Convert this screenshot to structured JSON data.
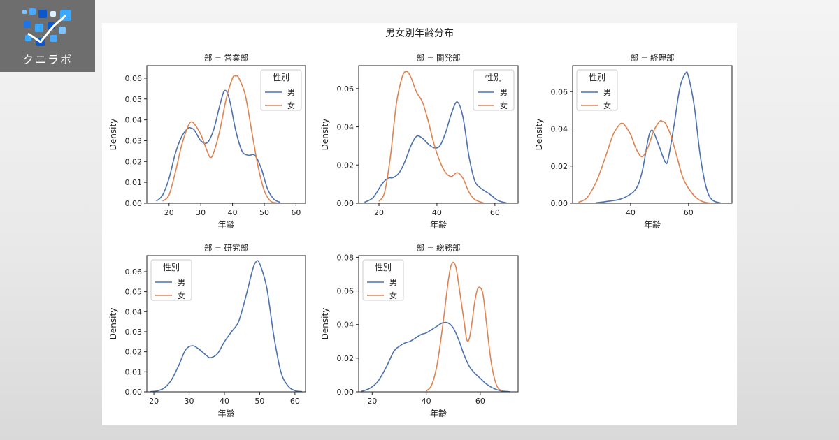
{
  "logo": {
    "text": "クニラボ"
  },
  "figure": {
    "title": "男女別年齢分布"
  },
  "colors": {
    "male": "#4c72b0",
    "female": "#dd8452"
  },
  "chart_data": [
    {
      "type": "line",
      "title": "部 = 営業部",
      "xlabel": "年齢",
      "ylabel": "Density",
      "xlim": [
        13,
        63
      ],
      "ylim": [
        0,
        0.066
      ],
      "xticks": [
        20,
        30,
        40,
        50,
        60
      ],
      "yticks": [
        0,
        0.01,
        0.02,
        0.03,
        0.04,
        0.05,
        0.06
      ],
      "ytick_labels": [
        "0.00",
        "0.01",
        "0.02",
        "0.03",
        "0.04",
        "0.05",
        "0.06"
      ],
      "legend": {
        "title": "性別",
        "entries": [
          "男",
          "女"
        ],
        "placement": "top-right"
      },
      "series": [
        {
          "name": "男",
          "x": [
            16,
            18,
            20,
            22,
            24,
            26,
            27,
            28,
            30,
            32,
            34,
            36,
            37.5,
            39,
            41,
            43,
            45,
            47,
            49,
            51,
            53,
            55
          ],
          "y": [
            0.001,
            0.004,
            0.012,
            0.024,
            0.032,
            0.036,
            0.036,
            0.035,
            0.03,
            0.029,
            0.035,
            0.047,
            0.054,
            0.05,
            0.035,
            0.025,
            0.023,
            0.023,
            0.017,
            0.007,
            0.002,
            0.0005
          ]
        },
        {
          "name": "女",
          "x": [
            18,
            20,
            22,
            24,
            26,
            27,
            28,
            30,
            32,
            33,
            34,
            36,
            38,
            40,
            41,
            42,
            44,
            46,
            48,
            50,
            52,
            54
          ],
          "y": [
            0.001,
            0.004,
            0.015,
            0.028,
            0.037,
            0.039,
            0.038,
            0.033,
            0.025,
            0.022,
            0.024,
            0.035,
            0.05,
            0.06,
            0.061,
            0.06,
            0.052,
            0.035,
            0.018,
            0.006,
            0.001,
            0.0002
          ]
        }
      ]
    },
    {
      "type": "line",
      "title": "部 = 開発部",
      "xlabel": "年齢",
      "ylabel": "Density",
      "xlim": [
        13,
        68
      ],
      "ylim": [
        0,
        0.072
      ],
      "xticks": [
        20,
        40,
        60
      ],
      "yticks": [
        0,
        0.02,
        0.04,
        0.06
      ],
      "ytick_labels": [
        "0.00",
        "0.02",
        "0.04",
        "0.06"
      ],
      "legend": {
        "title": "性別",
        "entries": [
          "男",
          "女"
        ],
        "placement": "top-right"
      },
      "series": [
        {
          "name": "男",
          "x": [
            15,
            18,
            21,
            23,
            25,
            27,
            29,
            31,
            33,
            35,
            37,
            39,
            41,
            43,
            45,
            47,
            49,
            51,
            53,
            55,
            58,
            61,
            64
          ],
          "y": [
            0.0005,
            0.003,
            0.01,
            0.013,
            0.0135,
            0.016,
            0.022,
            0.03,
            0.035,
            0.034,
            0.031,
            0.029,
            0.03,
            0.037,
            0.047,
            0.053,
            0.045,
            0.025,
            0.012,
            0.008,
            0.005,
            0.0015,
            0.0002
          ]
        },
        {
          "name": "女",
          "x": [
            20,
            22,
            24,
            26,
            28,
            29.5,
            31,
            33,
            35,
            37,
            39,
            41,
            43,
            45,
            47,
            49,
            51,
            53,
            56
          ],
          "y": [
            0.001,
            0.006,
            0.025,
            0.052,
            0.066,
            0.069,
            0.066,
            0.058,
            0.053,
            0.043,
            0.031,
            0.022,
            0.016,
            0.014,
            0.016,
            0.013,
            0.006,
            0.002,
            0.0002
          ]
        }
      ]
    },
    {
      "type": "line",
      "title": "部 = 経理部",
      "xlabel": "年齢",
      "ylabel": "Density",
      "xlim": [
        20,
        75
      ],
      "ylim": [
        0,
        0.074
      ],
      "xticks": [
        40,
        60
      ],
      "yticks": [
        0,
        0.02,
        0.04,
        0.06
      ],
      "ytick_labels": [
        "0.00",
        "0.02",
        "0.04",
        "0.06"
      ],
      "legend": {
        "title": "性別",
        "entries": [
          "男",
          "女"
        ],
        "placement": "top-left"
      },
      "series": [
        {
          "name": "男",
          "x": [
            28,
            32,
            36,
            39,
            42,
            44,
            46,
            47,
            48,
            50,
            52,
            53,
            55,
            57,
            59,
            60,
            62,
            64,
            66,
            68,
            71
          ],
          "y": [
            0.0002,
            0.001,
            0.002,
            0.004,
            0.008,
            0.017,
            0.034,
            0.039,
            0.038,
            0.03,
            0.022,
            0.024,
            0.042,
            0.062,
            0.07,
            0.068,
            0.052,
            0.026,
            0.009,
            0.002,
            0.0002
          ]
        },
        {
          "name": "女",
          "x": [
            22,
            25,
            28,
            30,
            32,
            34,
            36,
            37,
            38,
            40,
            42,
            44,
            46,
            48,
            50,
            51,
            52,
            54,
            56,
            58,
            60,
            62,
            64,
            66,
            68
          ],
          "y": [
            0.0005,
            0.003,
            0.011,
            0.019,
            0.028,
            0.037,
            0.042,
            0.043,
            0.042,
            0.037,
            0.029,
            0.025,
            0.03,
            0.039,
            0.044,
            0.044,
            0.043,
            0.036,
            0.025,
            0.014,
            0.008,
            0.004,
            0.0015,
            0.0004,
            0.0001
          ]
        }
      ]
    },
    {
      "type": "line",
      "title": "部 = 研究部",
      "xlabel": "年齢",
      "ylabel": "Density",
      "xlim": [
        18,
        63
      ],
      "ylim": [
        0,
        0.068
      ],
      "xticks": [
        20,
        30,
        40,
        50,
        60
      ],
      "yticks": [
        0,
        0.01,
        0.02,
        0.03,
        0.04,
        0.05,
        0.06
      ],
      "ytick_labels": [
        "0.00",
        "0.01",
        "0.02",
        "0.03",
        "0.04",
        "0.05",
        "0.06"
      ],
      "legend": {
        "title": "性別",
        "entries": [
          "男",
          "女"
        ],
        "placement": "top-left"
      },
      "series": [
        {
          "name": "男",
          "x": [
            19,
            21,
            23,
            25,
            27,
            29,
            31,
            33,
            35,
            36,
            38,
            40,
            42,
            44,
            46,
            48,
            49,
            50,
            52,
            54,
            56,
            58,
            60,
            62
          ],
          "y": [
            0.0001,
            0.0005,
            0.002,
            0.006,
            0.013,
            0.021,
            0.023,
            0.021,
            0.018,
            0.017,
            0.019,
            0.025,
            0.03,
            0.035,
            0.047,
            0.061,
            0.065,
            0.064,
            0.052,
            0.028,
            0.01,
            0.003,
            0.0006,
            0.0001
          ]
        },
        {
          "name": "女",
          "x": [],
          "y": []
        }
      ]
    },
    {
      "type": "line",
      "title": "部 = 総務部",
      "xlabel": "年齢",
      "ylabel": "Density",
      "xlim": [
        15,
        74
      ],
      "ylim": [
        0,
        0.081
      ],
      "xticks": [
        20,
        40,
        60
      ],
      "yticks": [
        0,
        0.02,
        0.04,
        0.06,
        0.08
      ],
      "ytick_labels": [
        "0.00",
        "0.02",
        "0.04",
        "0.06",
        "0.08"
      ],
      "legend": {
        "title": "性別",
        "entries": [
          "男",
          "女"
        ],
        "placement": "top-left"
      },
      "series": [
        {
          "name": "男",
          "x": [
            16,
            19,
            22,
            25,
            28,
            30,
            32,
            34,
            36,
            38,
            40,
            42,
            44,
            46,
            48,
            50,
            52,
            54,
            56,
            58,
            60,
            62,
            65,
            68,
            71
          ],
          "y": [
            0.0003,
            0.002,
            0.006,
            0.014,
            0.024,
            0.027,
            0.029,
            0.03,
            0.032,
            0.034,
            0.035,
            0.037,
            0.039,
            0.041,
            0.041,
            0.038,
            0.031,
            0.022,
            0.015,
            0.011,
            0.008,
            0.005,
            0.002,
            0.0005,
            0.0001
          ]
        },
        {
          "name": "女",
          "x": [
            40,
            42,
            44,
            46,
            48,
            49,
            50,
            51,
            52,
            54,
            55,
            56,
            57,
            58,
            59,
            60,
            61,
            62,
            64,
            66,
            68
          ],
          "y": [
            0.0005,
            0.004,
            0.016,
            0.038,
            0.064,
            0.074,
            0.077,
            0.074,
            0.064,
            0.042,
            0.031,
            0.032,
            0.042,
            0.054,
            0.061,
            0.062,
            0.058,
            0.045,
            0.018,
            0.004,
            0.0005
          ]
        }
      ]
    }
  ]
}
